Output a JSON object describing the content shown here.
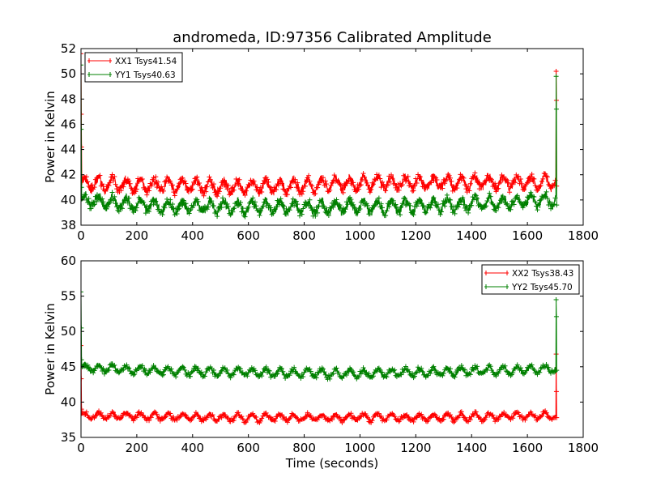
{
  "chart_data": [
    {
      "type": "line",
      "title": "andromeda, ID:97356 Calibrated Amplitude",
      "xlabel": "",
      "ylabel": "Power in Kelvin",
      "xlim": [
        0,
        1800
      ],
      "ylim": [
        38,
        52
      ],
      "x_ticks": [
        0,
        200,
        400,
        600,
        800,
        1000,
        1200,
        1400,
        1600,
        1800
      ],
      "y_ticks": [
        38,
        40,
        42,
        44,
        46,
        48,
        50,
        52
      ],
      "legend": "top-left",
      "grid": false,
      "series": [
        {
          "name": "XX1 Tsys41.54",
          "color": "#ff0000",
          "base": 41.3,
          "amp": 0.45,
          "noise": 0.35,
          "period": 50,
          "trend": [
            [
              0,
              0
            ],
            [
              600,
              -0.3
            ],
            [
              900,
              0
            ],
            [
              1500,
              0.1
            ],
            [
              1700,
              0.1
            ]
          ],
          "start_spikes": [
            51.6,
            46.8,
            44.2
          ],
          "end_spikes": [
            50.2,
            47.9,
            41.1
          ]
        },
        {
          "name": "YY1 Tsys40.63",
          "color": "#008000",
          "base": 39.7,
          "amp": 0.45,
          "noise": 0.35,
          "period": 50,
          "trend": [
            [
              0,
              0.3
            ],
            [
              300,
              -0.2
            ],
            [
              800,
              -0.3
            ],
            [
              1200,
              -0.2
            ],
            [
              1700,
              0.3
            ]
          ],
          "start_spikes": [
            50.7,
            45.6,
            41.0
          ],
          "end_spikes": [
            49.8,
            47.2,
            39.6
          ]
        }
      ]
    },
    {
      "type": "line",
      "title": "",
      "xlabel": "Time (seconds)",
      "ylabel": "Power in Kelvin",
      "xlim": [
        0,
        1800
      ],
      "ylim": [
        35,
        60
      ],
      "x_ticks": [
        0,
        200,
        400,
        600,
        800,
        1000,
        1200,
        1400,
        1600,
        1800
      ],
      "y_ticks": [
        35,
        40,
        45,
        50,
        55,
        60
      ],
      "legend": "top-right",
      "grid": false,
      "series": [
        {
          "name": "XX2 Tsys38.43",
          "color": "#ff0000",
          "base": 37.9,
          "amp": 0.45,
          "noise": 0.3,
          "period": 50,
          "trend": [
            [
              0,
              0.2
            ],
            [
              600,
              -0.1
            ],
            [
              1200,
              -0.1
            ],
            [
              1700,
              0.2
            ]
          ],
          "start_spikes": [
            48.0,
            43.3,
            39.0
          ],
          "end_spikes": [
            46.8,
            41.5,
            37.8
          ]
        },
        {
          "name": "YY2 Tsys45.70",
          "color": "#008000",
          "base": 44.3,
          "amp": 0.5,
          "noise": 0.35,
          "period": 50,
          "trend": [
            [
              0,
              0.6
            ],
            [
              400,
              0
            ],
            [
              900,
              -0.3
            ],
            [
              1300,
              0
            ],
            [
              1700,
              0.4
            ]
          ],
          "start_spikes": [
            55.6,
            50.5,
            46.0
          ],
          "end_spikes": [
            54.5,
            52.1,
            44.5
          ]
        }
      ]
    }
  ]
}
